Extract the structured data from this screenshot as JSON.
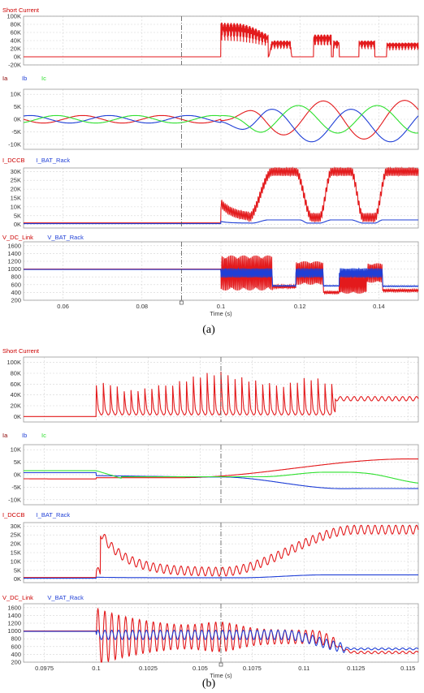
{
  "figure": {
    "captions": [
      "(a)",
      "(b)"
    ]
  },
  "colors": {
    "red": "#e31a1c",
    "blue": "#1f3fd6",
    "green": "#2fe02f",
    "darkred": "#b01010",
    "grid": "#d4d4d4",
    "frame": "#9a9a9a",
    "cursor": "#555555"
  },
  "chart_data": [
    {
      "id": "a1",
      "type": "line",
      "group": "(a)",
      "ylim": [
        -20000,
        100000
      ],
      "yticks": [
        -20000,
        0,
        20000,
        40000,
        60000,
        80000,
        100000
      ],
      "ytick_labels": [
        "-20K",
        "0K",
        "20K",
        "40K",
        "60K",
        "80K",
        "100K"
      ],
      "xlim": [
        0.05,
        0.15
      ],
      "xticks": [
        0.06,
        0.08,
        0.1,
        0.12,
        0.14
      ],
      "cursor_x": 0.09,
      "series": [
        {
          "name": "Short Current",
          "color": "#e31a1c",
          "kind": "a_short",
          "title_color": "#cc0000"
        }
      ]
    },
    {
      "id": "a2",
      "type": "line",
      "group": "(a)",
      "ylim": [
        -12000,
        12000
      ],
      "yticks": [
        -10000,
        -5000,
        0,
        5000,
        10000
      ],
      "ytick_labels": [
        "-10K",
        "-5K",
        "0K",
        "5K",
        "10K"
      ],
      "xlim": [
        0.05,
        0.15
      ],
      "xticks": [
        0.06,
        0.08,
        0.1,
        0.12,
        0.14
      ],
      "cursor_x": 0.09,
      "series": [
        {
          "name": "Ia",
          "color": "#e31a1c",
          "kind": "a_ia",
          "title_color": "#8b0000"
        },
        {
          "name": "Ib",
          "color": "#1f3fd6",
          "kind": "a_ib",
          "title_color": "#1f3fd6"
        },
        {
          "name": "Ic",
          "color": "#2fe02f",
          "kind": "a_ic",
          "title_color": "#2fe02f"
        }
      ]
    },
    {
      "id": "a3",
      "type": "line",
      "group": "(a)",
      "ylim": [
        -2000,
        32000
      ],
      "yticks": [
        0,
        5000,
        10000,
        15000,
        20000,
        25000,
        30000
      ],
      "ytick_labels": [
        "0K",
        "5K",
        "10K",
        "15K",
        "20K",
        "25K",
        "30K"
      ],
      "xlim": [
        0.05,
        0.15
      ],
      "xticks": [
        0.06,
        0.08,
        0.1,
        0.12,
        0.14
      ],
      "cursor_x": 0.09,
      "series": [
        {
          "name": "I_DCCB",
          "color": "#e31a1c",
          "kind": "a_dccb",
          "title_color": "#cc0000"
        },
        {
          "name": "I_BAT_Rack",
          "color": "#1f3fd6",
          "kind": "a_bat",
          "title_color": "#1f3fd6"
        }
      ]
    },
    {
      "id": "a4",
      "type": "line",
      "group": "(a)",
      "ylim": [
        200,
        1700
      ],
      "yticks": [
        200,
        400,
        600,
        800,
        1000,
        1200,
        1400,
        1600
      ],
      "ytick_labels": [
        "200",
        "400",
        "600",
        "800",
        "1000",
        "1200",
        "1400",
        "1600"
      ],
      "xlim": [
        0.05,
        0.15
      ],
      "xticks": [
        0.06,
        0.08,
        0.1,
        0.12,
        0.14
      ],
      "xtick_labels": [
        "0.06",
        "0.08",
        "0.1",
        "0.12",
        "0.14"
      ],
      "xlabel": "Time (s)",
      "cursor_x": 0.09,
      "series": [
        {
          "name": "V_DC_Link",
          "color": "#e31a1c",
          "kind": "a_vdc",
          "title_color": "#cc0000"
        },
        {
          "name": "V_BAT_Rack",
          "color": "#1f3fd6",
          "kind": "a_vbat",
          "title_color": "#1f3fd6"
        }
      ]
    },
    {
      "id": "b1",
      "type": "line",
      "group": "(b)",
      "ylim": [
        -10000,
        110000
      ],
      "yticks": [
        0,
        20000,
        40000,
        60000,
        80000,
        100000
      ],
      "ytick_labels": [
        "0K",
        "20K",
        "40K",
        "60K",
        "80K",
        "100K"
      ],
      "xlim": [
        0.0965,
        0.1155
      ],
      "xticks": [
        0.0975,
        0.1,
        0.1025,
        0.105,
        0.1075,
        0.11,
        0.1125,
        0.115
      ],
      "cursor_x": 0.106,
      "series": [
        {
          "name": "Short Current",
          "color": "#e31a1c",
          "kind": "b_short",
          "title_color": "#cc0000"
        }
      ]
    },
    {
      "id": "b2",
      "type": "line",
      "group": "(b)",
      "ylim": [
        -12000,
        12000
      ],
      "yticks": [
        -10000,
        -5000,
        0,
        5000,
        10000
      ],
      "ytick_labels": [
        "-10K",
        "-5K",
        "0K",
        "5K",
        "10K"
      ],
      "xlim": [
        0.0965,
        0.1155
      ],
      "xticks": [
        0.0975,
        0.1,
        0.1025,
        0.105,
        0.1075,
        0.11,
        0.1125,
        0.115
      ],
      "cursor_x": 0.106,
      "series": [
        {
          "name": "Ia",
          "color": "#e31a1c",
          "kind": "b_ia",
          "title_color": "#8b0000"
        },
        {
          "name": "Ib",
          "color": "#1f3fd6",
          "kind": "b_ib",
          "title_color": "#1f3fd6"
        },
        {
          "name": "Ic",
          "color": "#2fe02f",
          "kind": "b_ic",
          "title_color": "#2fe02f"
        }
      ]
    },
    {
      "id": "b3",
      "type": "line",
      "group": "(b)",
      "ylim": [
        -2000,
        32000
      ],
      "yticks": [
        0,
        5000,
        10000,
        15000,
        20000,
        25000,
        30000
      ],
      "ytick_labels": [
        "0K",
        "5K",
        "10K",
        "15K",
        "20K",
        "25K",
        "30K"
      ],
      "xlim": [
        0.0965,
        0.1155
      ],
      "xticks": [
        0.0975,
        0.1,
        0.1025,
        0.105,
        0.1075,
        0.11,
        0.1125,
        0.115
      ],
      "cursor_x": 0.106,
      "series": [
        {
          "name": "I_DCCB",
          "color": "#e31a1c",
          "kind": "b_dccb",
          "title_color": "#cc0000"
        },
        {
          "name": "I_BAT_Rack",
          "color": "#1f3fd6",
          "kind": "b_bat",
          "title_color": "#1f3fd6"
        }
      ]
    },
    {
      "id": "b4",
      "type": "line",
      "group": "(b)",
      "ylim": [
        200,
        1700
      ],
      "yticks": [
        200,
        400,
        600,
        800,
        1000,
        1200,
        1400,
        1600
      ],
      "ytick_labels": [
        "200",
        "400",
        "600",
        "800",
        "1000",
        "1200",
        "1400",
        "1600"
      ],
      "xlim": [
        0.0965,
        0.1155
      ],
      "xticks": [
        0.0975,
        0.1,
        0.1025,
        0.105,
        0.1075,
        0.11,
        0.1125,
        0.115
      ],
      "xtick_labels": [
        "0.0975",
        "0.1",
        "0.1025",
        "0.105",
        "0.1075",
        "0.11",
        "0.1125",
        "0.115"
      ],
      "xlabel": "Time (s)",
      "cursor_x": 0.106,
      "series": [
        {
          "name": "V_DC_Link",
          "color": "#e31a1c",
          "kind": "b_vdc",
          "title_color": "#cc0000"
        },
        {
          "name": "V_BAT_Rack",
          "color": "#1f3fd6",
          "kind": "b_vbat",
          "title_color": "#1f3fd6"
        }
      ]
    }
  ]
}
